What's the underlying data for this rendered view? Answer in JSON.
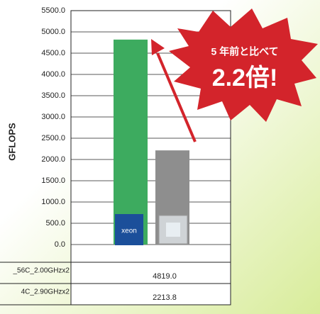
{
  "chart_data": {
    "type": "bar",
    "y_label": "GFLOPS",
    "categories": [
      "_56C_2.00GHzx2",
      "4C_2.90GHzx2"
    ],
    "values": [
      4819.0,
      2213.8
    ],
    "value_labels": [
      "4819.0",
      "2213.8"
    ],
    "colors": [
      "#3dab5f",
      "#8e8e8e"
    ],
    "ylim": [
      0,
      5500
    ],
    "yticks": [
      {
        "value": 0,
        "label": "0.0"
      },
      {
        "value": 500,
        "label": "500.0"
      },
      {
        "value": 1000,
        "label": "1000.0"
      },
      {
        "value": 1500,
        "label": "1500.0"
      },
      {
        "value": 2000,
        "label": "2000.0"
      },
      {
        "value": 2500,
        "label": "2500.0"
      },
      {
        "value": 3000,
        "label": "3000.0"
      },
      {
        "value": 3500,
        "label": "3500.0"
      },
      {
        "value": 4000,
        "label": "4000.0"
      },
      {
        "value": 4500,
        "label": "4500.0"
      },
      {
        "value": 5000,
        "label": "5000.0"
      },
      {
        "value": 5500,
        "label": "5500.0"
      }
    ],
    "grid": true,
    "annotations": [
      "5 年前と比べて",
      "2.2倍!"
    ]
  }
}
